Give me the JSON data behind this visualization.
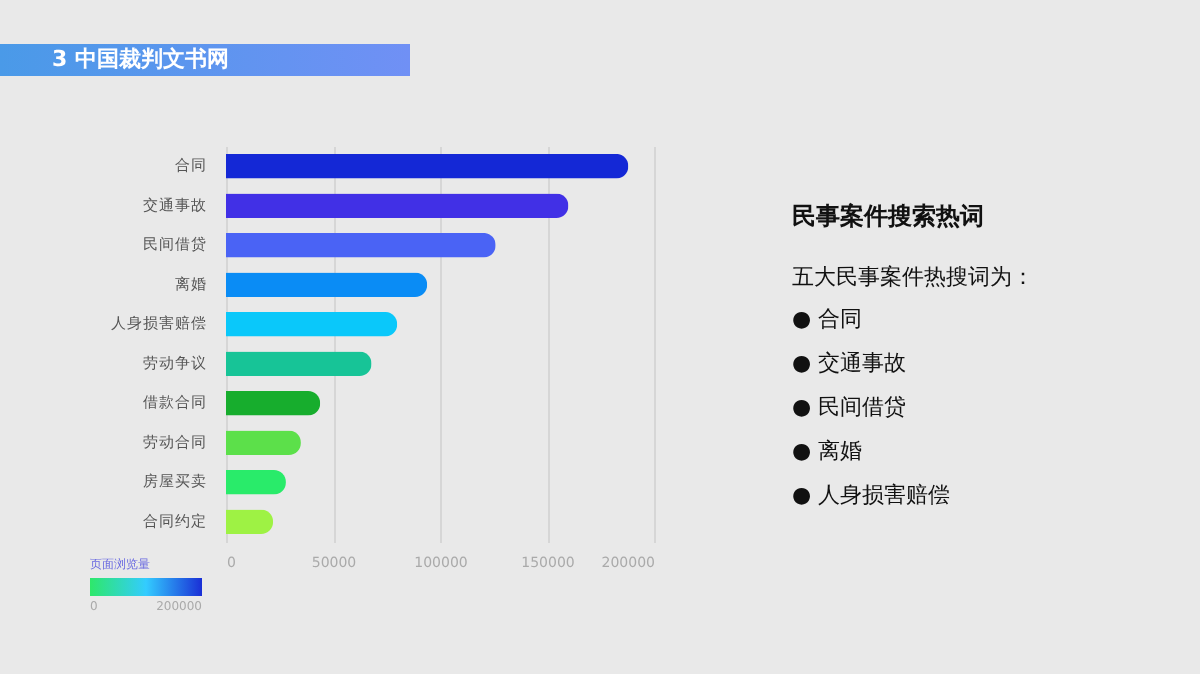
{
  "chart_data": {
    "type": "bar",
    "orientation": "horizontal",
    "title": "3  中国裁判文书网",
    "categories": [
      "合同",
      "交通事故",
      "民间借贷",
      "离婚",
      "人身损害赔偿",
      "劳动争议",
      "借款合同",
      "劳动合同",
      "房屋买卖",
      "合同约定"
    ],
    "values": [
      188000,
      160000,
      126000,
      94000,
      80000,
      68000,
      44000,
      35000,
      28000,
      22000
    ],
    "colors": [
      "#1428d6",
      "#4130e6",
      "#4a63f5",
      "#0a8cf5",
      "#0ac8fa",
      "#17c497",
      "#17ad2d",
      "#5ce04a",
      "#29eb6a",
      "#9ef244"
    ],
    "xlim": [
      0,
      200000
    ],
    "xticks": [
      0,
      50000,
      100000,
      150000,
      200000
    ],
    "grid": "x",
    "clabel": "页面浏览量",
    "clim": [
      0,
      200000
    ],
    "cticks": [
      0,
      200000
    ],
    "annotations": [
      "民事案件搜索热词",
      "五大民事案件热搜词为：",
      "●  合同",
      "●  交通事故",
      "●  民间借贷",
      "●  离婚",
      "●  人身损害赔偿"
    ]
  }
}
